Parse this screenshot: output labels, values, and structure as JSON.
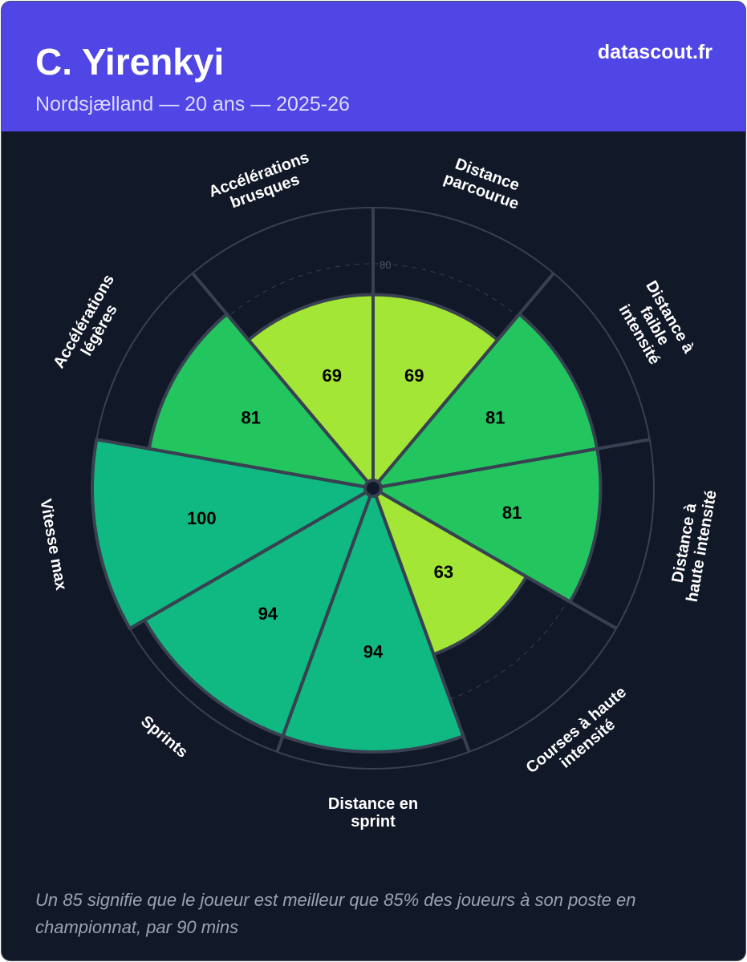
{
  "header": {
    "title": "C. Yirenkyi",
    "subtitle": "Nordsjælland — 20 ans — 2025-26",
    "brand": "datascout.fr"
  },
  "footnote": "Un 85 signifie que le joueur est meilleur que 85% des joueurs à son poste en championnat, par 90 mins",
  "chart_data": {
    "type": "polar-bar",
    "range": [
      0,
      100
    ],
    "reference_ring": {
      "value": 80,
      "label": "80"
    },
    "categories": [
      {
        "label": [
          "Distance",
          "parcourue"
        ],
        "value": 69
      },
      {
        "label": [
          "Distance à",
          "faible",
          "intensité"
        ],
        "value": 81
      },
      {
        "label": [
          "Distance à",
          "haute intensité"
        ],
        "value": 81
      },
      {
        "label": [
          "Courses à haute",
          "intensité"
        ],
        "value": 63
      },
      {
        "label": [
          "Distance en",
          "sprint"
        ],
        "value": 94
      },
      {
        "label": [
          "Sprints"
        ],
        "value": 94
      },
      {
        "label": [
          "Vitesse max"
        ],
        "value": 100
      },
      {
        "label": [
          "Accélérations",
          "légères"
        ],
        "value": 81
      },
      {
        "label": [
          "Accélérations",
          "brusques"
        ],
        "value": 69
      }
    ],
    "color_scale": [
      {
        "min": 90,
        "color": "#10b981"
      },
      {
        "min": 70,
        "color": "#22c55e"
      },
      {
        "min": 0,
        "color": "#a3e635"
      }
    ]
  }
}
